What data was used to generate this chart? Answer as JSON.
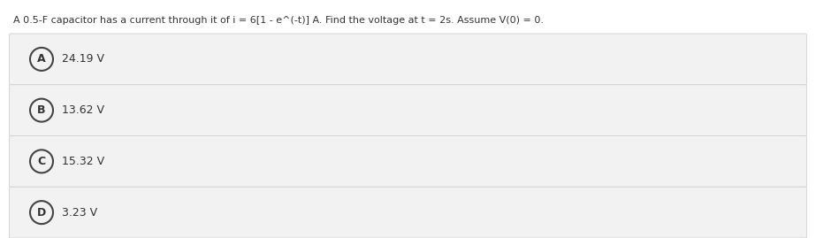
{
  "title": "A 0.5-F capacitor has a current through it of i = 6[1 - e^(-t)] A. Find the voltage at t = 2s. Assume V(0) = 0.",
  "options": [
    {
      "label": "A",
      "text": "24.19 V"
    },
    {
      "label": "B",
      "text": "13.62 V"
    },
    {
      "label": "C",
      "text": "15.32 V"
    },
    {
      "label": "D",
      "text": "3.23 V"
    }
  ],
  "bg_color": "#ffffff",
  "option_bg_color": "#f2f2f2",
  "option_border_color": "#d0d0d0",
  "text_color": "#333333",
  "circle_edge_color": "#444444",
  "title_fontsize": 8.0,
  "option_fontsize": 9.0,
  "label_fontsize": 9.0
}
